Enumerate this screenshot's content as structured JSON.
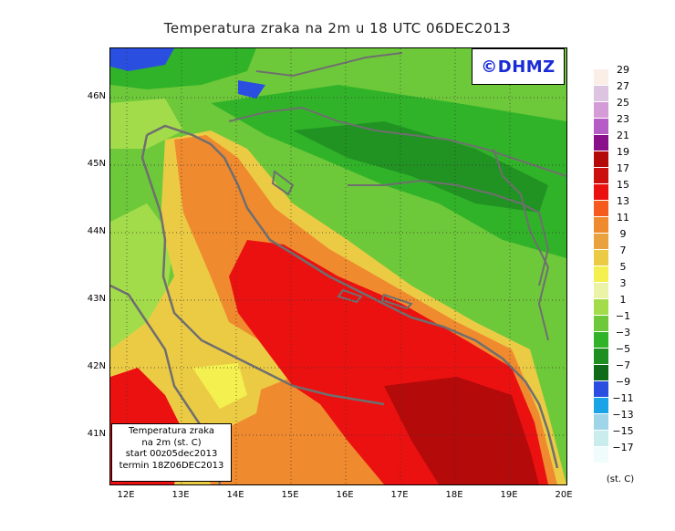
{
  "title": "Temperatura zraka na 2m u 18 UTC 06DEC2013",
  "brand": "©DHMZ",
  "info_box": {
    "line1": "Temperatura zraka",
    "line2": "na 2m (st. C)",
    "line3": "start 00z05dec2013",
    "line4": "termin 18Z06DEC2013"
  },
  "lat_labels": [
    "46N",
    "45N",
    "44N",
    "43N",
    "42N",
    "41N"
  ],
  "lon_labels": [
    "12E",
    "13E",
    "14E",
    "15E",
    "16E",
    "17E",
    "18E",
    "19E",
    "20E"
  ],
  "legend": {
    "unit": "(st. C)",
    "boundaries": [
      "29",
      "27",
      "25",
      "23",
      "21",
      "19",
      "17",
      "15",
      "13",
      "11",
      "9",
      "7",
      "5",
      "3",
      "1",
      "−1",
      "−3",
      "−5",
      "−7",
      "−9",
      "−11",
      "−13",
      "−15",
      "−17"
    ],
    "colors": [
      "#fbeee6",
      "#ddc4e0",
      "#d59bd6",
      "#b65cc6",
      "#8a0f8a",
      "#b50a0a",
      "#cc1010",
      "#ec1111",
      "#f45b1c",
      "#f08a2e",
      "#e9a23d",
      "#eccb44",
      "#f3f04f",
      "#eaf3a8",
      "#a3dc4b",
      "#6ec93a",
      "#31b329",
      "#1f8f22",
      "#0f6a1a",
      "#2a4fe0",
      "#1aa4e8",
      "#9ed5e8",
      "#c9ecec",
      "#f0fbfb"
    ]
  }
}
